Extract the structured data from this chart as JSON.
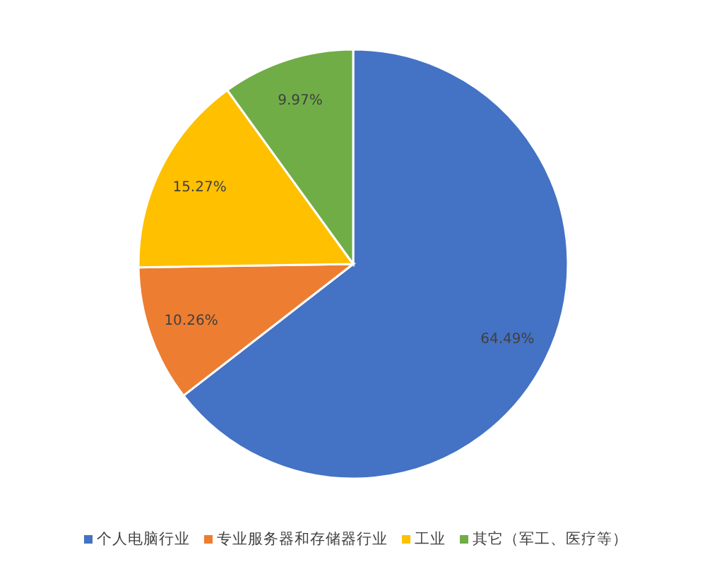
{
  "chart_data": {
    "type": "pie",
    "categories": [
      "个人电脑行业",
      "专业服务器和存储器行业",
      "工业",
      "其它（军工、医疗等）"
    ],
    "values": [
      64.49,
      10.26,
      15.27,
      9.97
    ],
    "colors": [
      "#4472c4",
      "#ed7d31",
      "#ffc000",
      "#70ad47"
    ],
    "value_labels": [
      "64.49%",
      "10.26%",
      "15.27%",
      "9.97%"
    ],
    "legend": "bottom"
  }
}
